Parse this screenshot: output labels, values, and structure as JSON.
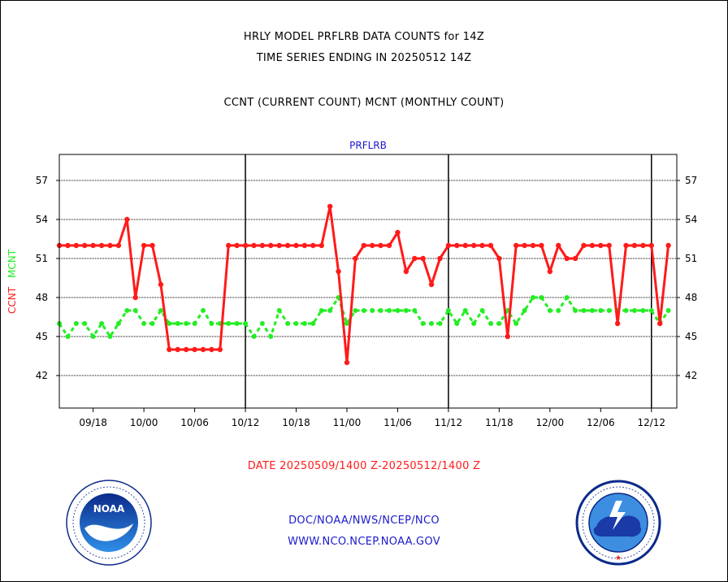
{
  "header": {
    "line1": "HRLY MODEL PRFLRB DATA COUNTS for 14Z",
    "line2": "TIME SERIES ENDING IN 20250512 14Z",
    "line3": "CCNT (CURRENT COUNT) MCNT (MONTHLY COUNT)"
  },
  "footer": {
    "date_range": "DATE 20250509/1400 Z-20250512/1400 Z",
    "org_line": "DOC/NOAA/NWS/NCEP/NCO",
    "url_line": "WWW.NCO.NCEP.NOAA.GOV"
  },
  "logos": {
    "noaa": "NOAA",
    "weather_service": "NATIONAL WEATHER SERVICE"
  },
  "colors": {
    "ccnt": "#ff1a1a",
    "mcnt": "#22ee22",
    "title_blue": "#1a1acc",
    "grid": "#000000"
  },
  "chart_data": {
    "type": "line",
    "title": "PRFLRB",
    "ylabel_ccnt": "CCNT",
    "ylabel_mcnt": "MCNT",
    "ylim": [
      39.5,
      59
    ],
    "yticks": [
      42,
      45,
      48,
      51,
      54,
      57
    ],
    "xlim": [
      0,
      73
    ],
    "xticks": [
      {
        "x": 4,
        "label": "09/18"
      },
      {
        "x": 10,
        "label": "10/00"
      },
      {
        "x": 16,
        "label": "10/06"
      },
      {
        "x": 22,
        "label": "10/12"
      },
      {
        "x": 28,
        "label": "10/18"
      },
      {
        "x": 34,
        "label": "11/00"
      },
      {
        "x": 40,
        "label": "11/06"
      },
      {
        "x": 46,
        "label": "11/12"
      },
      {
        "x": 52,
        "label": "11/18"
      },
      {
        "x": 58,
        "label": "12/00"
      },
      {
        "x": 64,
        "label": "12/06"
      },
      {
        "x": 70,
        "label": "12/12"
      }
    ],
    "day_boundaries": [
      22,
      46,
      70
    ],
    "x_start_hour": 14,
    "series": [
      {
        "name": "CCNT",
        "values": [
          52,
          52,
          52,
          52,
          52,
          52,
          52,
          52,
          54,
          48,
          52,
          52,
          49,
          44,
          44,
          44,
          44,
          44,
          44,
          44,
          52,
          52,
          52,
          52,
          52,
          52,
          52,
          52,
          52,
          52,
          52,
          52,
          55,
          50,
          43,
          51,
          52,
          52,
          52,
          52,
          53,
          50,
          51,
          51,
          49,
          51,
          52,
          52,
          52,
          52,
          52,
          52,
          51,
          45,
          52,
          52,
          52,
          52,
          50,
          52,
          51,
          51,
          52,
          52,
          52,
          52,
          46,
          52,
          52,
          52,
          52,
          46,
          52
        ]
      },
      {
        "name": "MCNT",
        "values": [
          46,
          45,
          46,
          46,
          45,
          46,
          45,
          46,
          47,
          47,
          46,
          46,
          47,
          46,
          46,
          46,
          46,
          47,
          46,
          46,
          46,
          46,
          46,
          45,
          46,
          45,
          47,
          46,
          46,
          46,
          46,
          47,
          47,
          48,
          46,
          47,
          47,
          47,
          47,
          47,
          47,
          47,
          47,
          46,
          46,
          46,
          47,
          46,
          47,
          46,
          47,
          46,
          46,
          47,
          46,
          47,
          48,
          48,
          47,
          47,
          48,
          47,
          47,
          47,
          47,
          47,
          47,
          47,
          47,
          47,
          47,
          46,
          47
        ]
      }
    ]
  }
}
